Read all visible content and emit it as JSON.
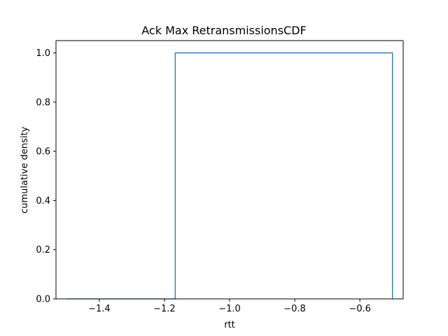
{
  "chart_data": {
    "type": "line",
    "title": "Ack Max RetransmissionsCDF",
    "xlabel": "rtt",
    "ylabel": "cumulative density",
    "xlim": [
      -1.533,
      -0.467
    ],
    "ylim": [
      0.0,
      1.05
    ],
    "xticks": [
      -1.4,
      -1.2,
      -1.0,
      -0.8,
      -0.6
    ],
    "xtick_labels": [
      "−1.4",
      "−1.2",
      "−1.0",
      "−0.8",
      "−0.6"
    ],
    "yticks": [
      0.0,
      0.2,
      0.4,
      0.6,
      0.8,
      1.0
    ],
    "ytick_labels": [
      "0.0",
      "0.2",
      "0.4",
      "0.6",
      "0.8",
      "1.0"
    ],
    "grid": false,
    "series": [
      {
        "color": "#1f77b4",
        "step": true,
        "x": [
          -1.5,
          -1.167,
          -1.167,
          -0.5,
          -0.5
        ],
        "y": [
          0.0,
          0.0,
          1.0,
          1.0,
          0.0
        ]
      }
    ]
  }
}
